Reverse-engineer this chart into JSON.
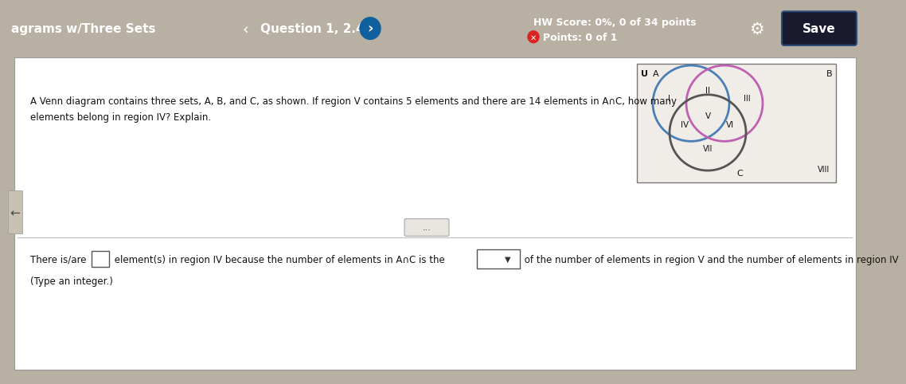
{
  "header_bg": "#1e8bc3",
  "header_text_color": "#ffffff",
  "header_left": "agrams w/Three Sets",
  "header_question": "Question 1, 2.4.5",
  "header_hw_line1": "HW Score: 0%, 0 of 34 points",
  "header_hw_line2": "Points: 0 of 1",
  "header_save": "Save",
  "body_bg": "#b8b0a2",
  "question_text_line1": "A Venn diagram contains three sets, A, B, and C, as shown. If region V contains 5 elements and there are 14 elements in A∩C, how many",
  "question_text_line2": "elements belong in region IV? Explain.",
  "answer_text1": "There is/are ",
  "answer_text2": " element(s) in region IV because the number of elements in A∩C is the ",
  "answer_dropdown_label": "▼",
  "answer_text3": " of the number of elements in region V and the number of elements in region IV",
  "answer_note": "(Type an integer.)",
  "venn_A_color": "#4a7fb5",
  "venn_B_color": "#c060b0",
  "venn_C_color": "#555555",
  "venn_bg": "#f0ede8",
  "U_label": "U",
  "A_label": "A",
  "B_label": "B",
  "C_label": "C",
  "nav_left_arrow": "‹",
  "nav_right_arrow": "›",
  "gear_icon": "⚙",
  "ellipsis": "..."
}
